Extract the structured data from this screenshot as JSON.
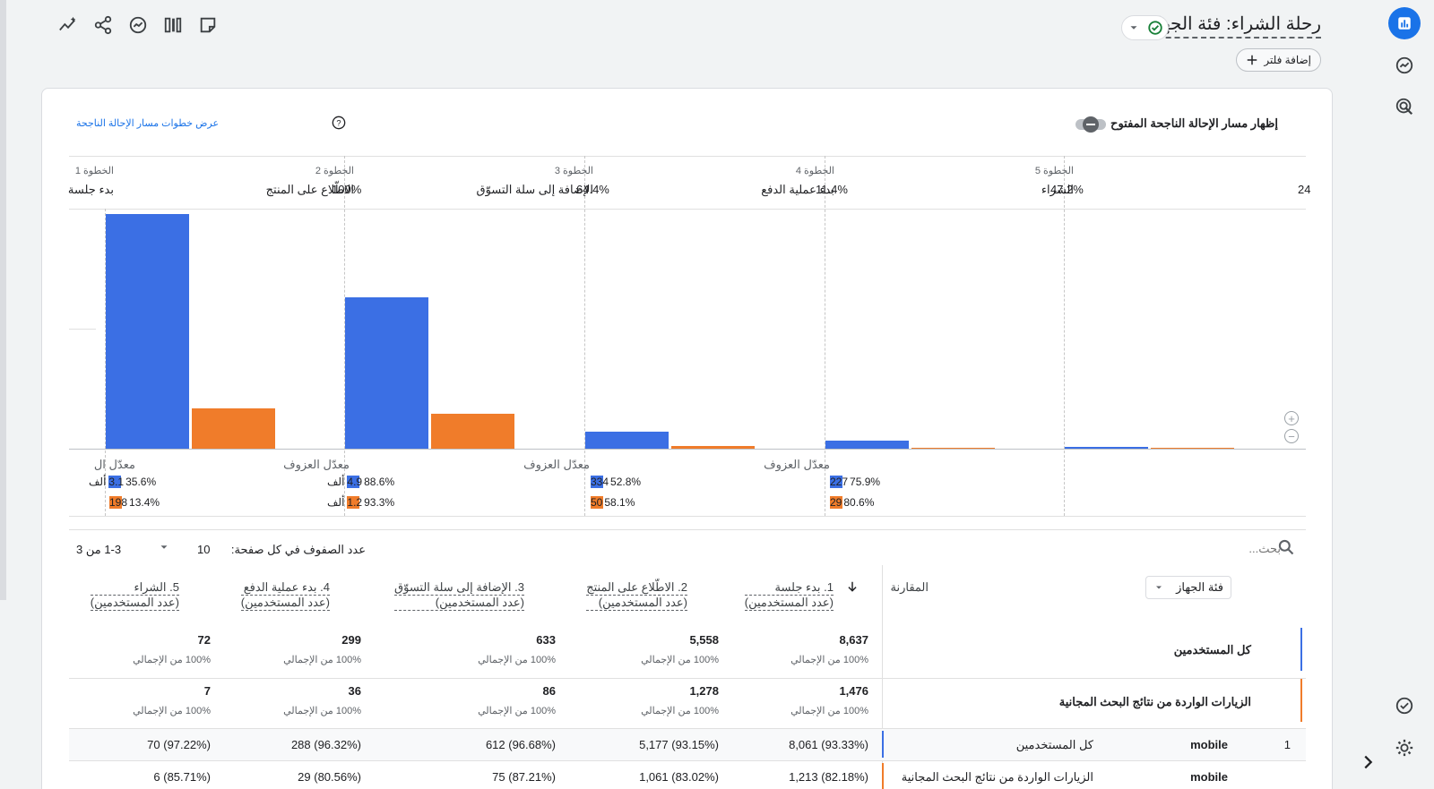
{
  "header": {
    "title": "رحلة الشراء: فئة الجهاز",
    "add_filter_label": "إضافة فلتر",
    "toolbar_icons": [
      "insights-icon",
      "share-icon",
      "compare-icon",
      "columns-icon",
      "notes-icon"
    ]
  },
  "rail": {
    "icons": [
      "reports-icon",
      "explore-icon",
      "advertising-icon",
      "check-icon",
      "gear-icon",
      "chevron-right-icon"
    ]
  },
  "funnel": {
    "toggle_label": "إظهار مسار الإحالة الناجحة المفتوح",
    "open_link_label": "عرض خطوات مسار الإحالة الناجحة",
    "steps": [
      {
        "head": "الخطوة 1",
        "name": "بدء جلسة",
        "pct": ""
      },
      {
        "head": "الخطوة 2",
        "name": "الاطّلاع على المنتج",
        "pct": "100%"
      },
      {
        "head": "الخطوة 3",
        "name": "الإضافة إلى سلة التسوّق",
        "pct": "64.4%"
      },
      {
        "head": "الخطوة 4",
        "name": "بدء عملية الدفع",
        "pct": "11.4%"
      },
      {
        "head": "الخطوة 5",
        "name": "الشراء",
        "pct": "47.2%"
      }
    ],
    "overflow_pct": "24",
    "abandonment_label": "معدّل العزوف",
    "abandonment_label_cut": "معدّل ال",
    "abandonment": [
      {
        "blue_count": "3.1",
        "blue_unit": "ألف",
        "blue_pct": "35.6%",
        "orange_count": "198",
        "orange_unit": "",
        "orange_pct": "13.4%"
      },
      {
        "blue_count": "4.9",
        "blue_unit": "ألف",
        "blue_pct": "88.6%",
        "orange_count": "1.2",
        "orange_unit": "ألف",
        "orange_pct": "93.3%"
      },
      {
        "blue_count": "334",
        "blue_unit": "",
        "blue_pct": "52.8%",
        "orange_count": "50",
        "orange_unit": "",
        "orange_pct": "58.1%"
      },
      {
        "blue_count": "227",
        "blue_unit": "",
        "blue_pct": "75.9%",
        "orange_count": "29",
        "orange_unit": "",
        "orange_pct": "80.6%"
      }
    ],
    "colors": {
      "all_users": "#3b6fe4",
      "organic": "#f07c2a"
    }
  },
  "chart_data": {
    "type": "bar",
    "categories": [
      "بدء جلسة",
      "الاطّلاع على المنتج",
      "الإضافة إلى سلة التسوّق",
      "بدء عملية الدفع",
      "الشراء"
    ],
    "series": [
      {
        "name": "كل المستخدمين",
        "values": [
          8637,
          5558,
          633,
          299,
          72
        ]
      },
      {
        "name": "الزيارات الواردة من نتائج البحث المجانية",
        "values": [
          1476,
          1278,
          86,
          36,
          7
        ]
      }
    ],
    "ylim": [
      0,
      8637
    ]
  },
  "table_controls": {
    "search_placeholder": "بحث...",
    "rows_per_page_label": "عدد الصفوف في كل صفحة:",
    "rows_per_page_value": "10",
    "pagination": "1-3 من 3"
  },
  "table": {
    "dimension_select": "فئة الجهاز",
    "comparison_header": "المقارنة",
    "columns": [
      {
        "title": "1. بدء جلسة",
        "sub": "(عدد المستخدمين)"
      },
      {
        "title": "2. الاطّلاع على المنتج",
        "sub": "(عدد المستخدمين)"
      },
      {
        "title": "3. الإضافة إلى سلة التسوّق",
        "sub": "(عدد المستخدمين)"
      },
      {
        "title": "4. بدء عملية الدفع",
        "sub": "(عدد المستخدمين)"
      },
      {
        "title": "5. الشراء",
        "sub": "(عدد المستخدمين)"
      }
    ],
    "total_rows": [
      {
        "label": "كل المستخدمين",
        "values": [
          "8,637",
          "5,558",
          "633",
          "299",
          "72"
        ],
        "sub": "100% من الإجمالي"
      },
      {
        "label": "الزيارات الواردة من نتائج البحث المجانية",
        "values": [
          "1,476",
          "1,278",
          "86",
          "36",
          "7"
        ],
        "sub": "100% من الإجمالي"
      }
    ],
    "data_rows": [
      {
        "index": "1",
        "dim": "mobile",
        "segment": "كل المستخدمين",
        "values": [
          "8,061 (93.33%)",
          "5,177 (93.15%)",
          "612 (96.68%)",
          "288 (96.32%)",
          "70 (97.22%)"
        ]
      },
      {
        "index": "",
        "dim": "mobile",
        "segment": "الزيارات الواردة من نتائج البحث المجانية",
        "values": [
          "1,213 (82.18%)",
          "1,061 (83.02%)",
          "75 (87.21%)",
          "29 (80.56%)",
          "6 (85.71%)"
        ]
      }
    ]
  }
}
